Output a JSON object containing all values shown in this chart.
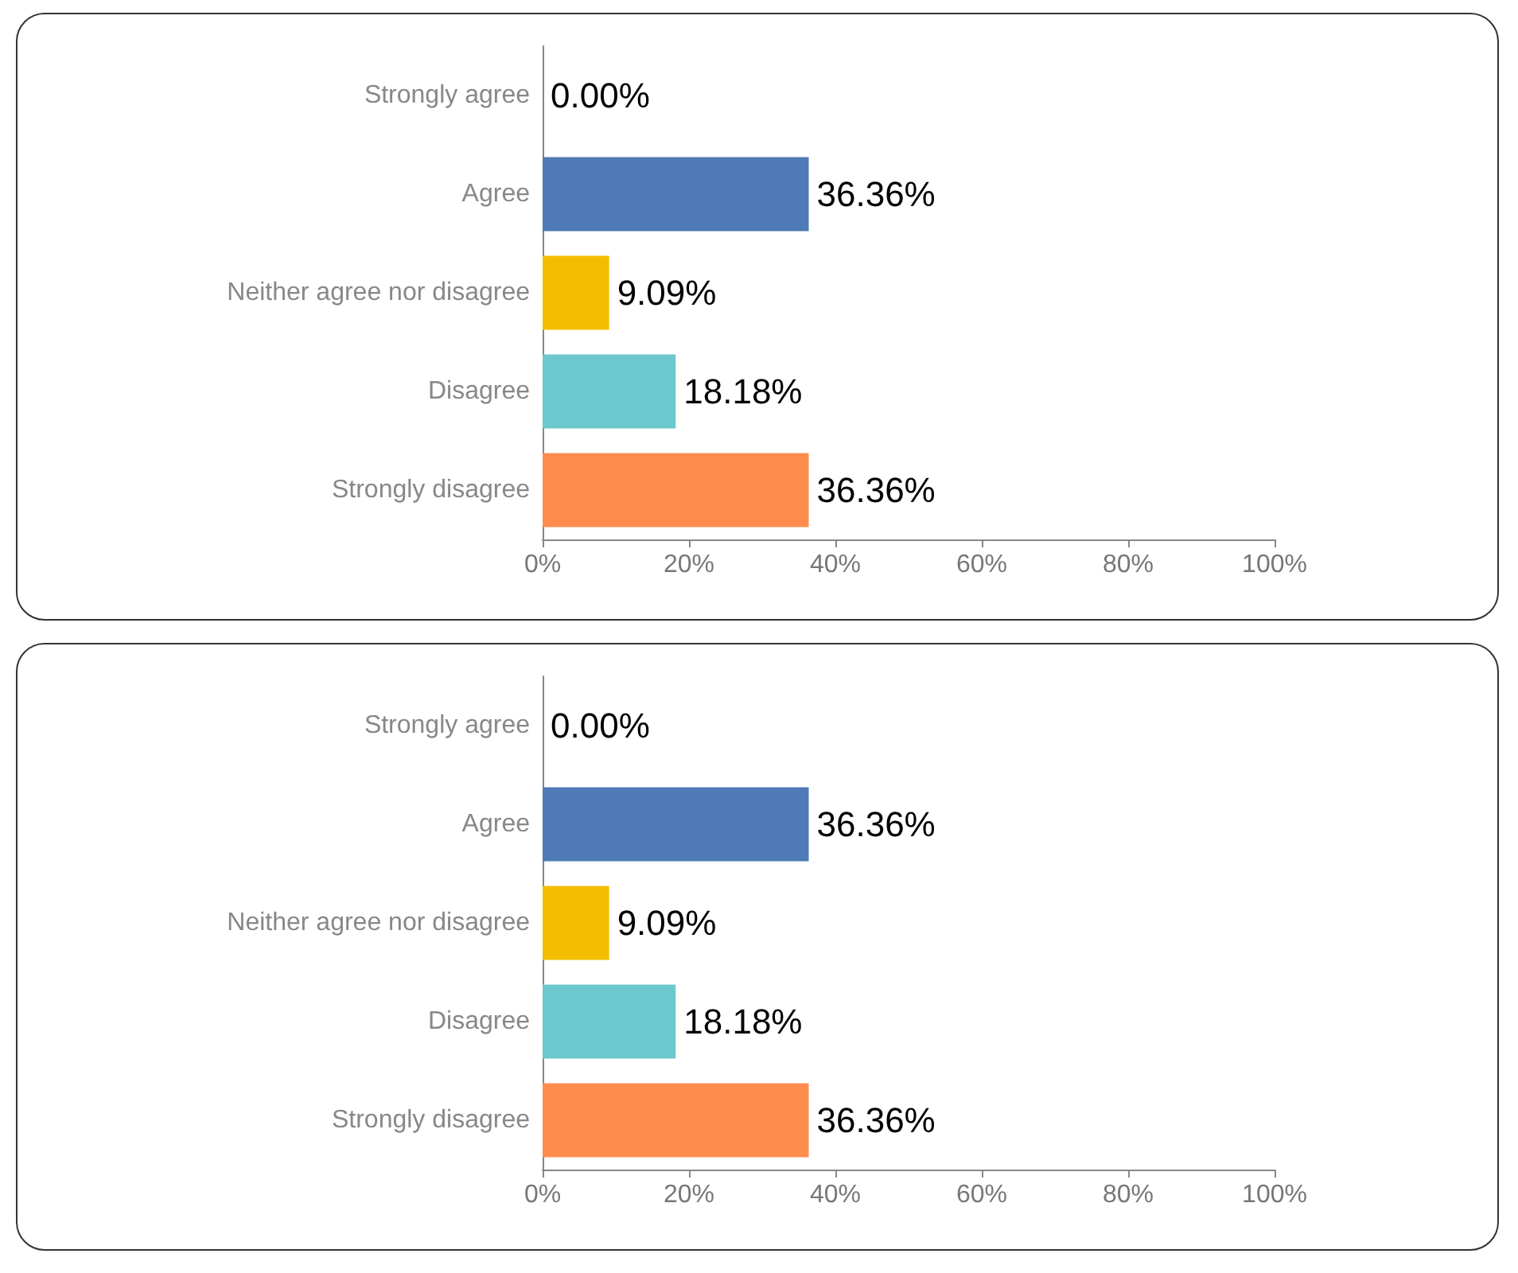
{
  "chart_data": [
    {
      "type": "bar",
      "orientation": "horizontal",
      "categories": [
        "Strongly agree",
        "Agree",
        "Neither agree nor disagree",
        "Disagree",
        "Strongly disagree"
      ],
      "values": [
        0,
        36.36,
        9.09,
        18.18,
        36.36
      ],
      "colors": [
        "#4e7ab5",
        "#4e7ab5",
        "#f5bd00",
        "#6cc8cc",
        "#ff8c4f"
      ],
      "value_labels": [
        "0.00%",
        "36.36%",
        "9.09%",
        "18.18%",
        "36.36%"
      ],
      "xlim": [
        0,
        100
      ],
      "xticks": [
        {
          "value": 0,
          "label": "0%"
        },
        {
          "value": 20,
          "label": "20%"
        },
        {
          "value": 40,
          "label": "40%"
        },
        {
          "value": 60,
          "label": "60%"
        },
        {
          "value": 80,
          "label": "80%"
        },
        {
          "value": 100,
          "label": "100%"
        }
      ],
      "grid": false
    },
    {
      "type": "bar",
      "orientation": "horizontal",
      "categories": [
        "Strongly agree",
        "Agree",
        "Neither agree nor disagree",
        "Disagree",
        "Strongly disagree"
      ],
      "values": [
        0,
        36.36,
        9.09,
        18.18,
        36.36
      ],
      "colors": [
        "#4e7ab5",
        "#4e7ab5",
        "#f5bd00",
        "#6cc8cc",
        "#ff8c4f"
      ],
      "value_labels": [
        "0.00%",
        "36.36%",
        "9.09%",
        "18.18%",
        "36.36%"
      ],
      "xlim": [
        0,
        100
      ],
      "xticks": [
        {
          "value": 0,
          "label": "0%"
        },
        {
          "value": 20,
          "label": "20%"
        },
        {
          "value": 40,
          "label": "40%"
        },
        {
          "value": 60,
          "label": "60%"
        },
        {
          "value": 80,
          "label": "80%"
        },
        {
          "value": 100,
          "label": "100%"
        }
      ],
      "grid": false
    }
  ]
}
